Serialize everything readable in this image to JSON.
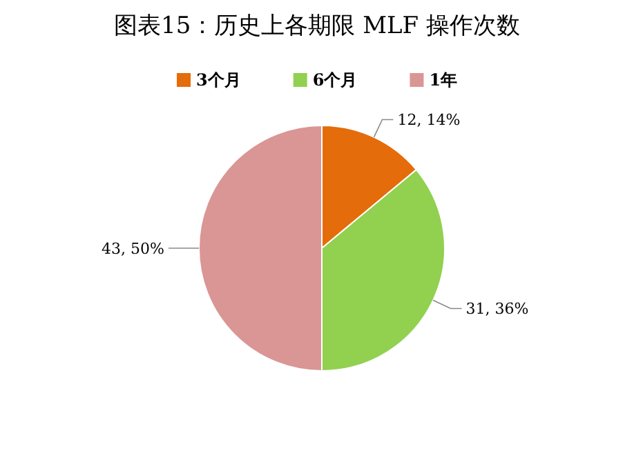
{
  "chart_data": {
    "type": "pie",
    "title": "图表15：历史上各期限 MLF 操作次数",
    "categories": [
      "3个月",
      "6个月",
      "1年"
    ],
    "values": [
      12,
      31,
      43
    ],
    "colors": [
      "#e46c0a",
      "#92d050",
      "#d99694"
    ],
    "value_labels": [
      "12, 14%",
      "31, 36%",
      "43, 50%"
    ],
    "legend": "top"
  }
}
